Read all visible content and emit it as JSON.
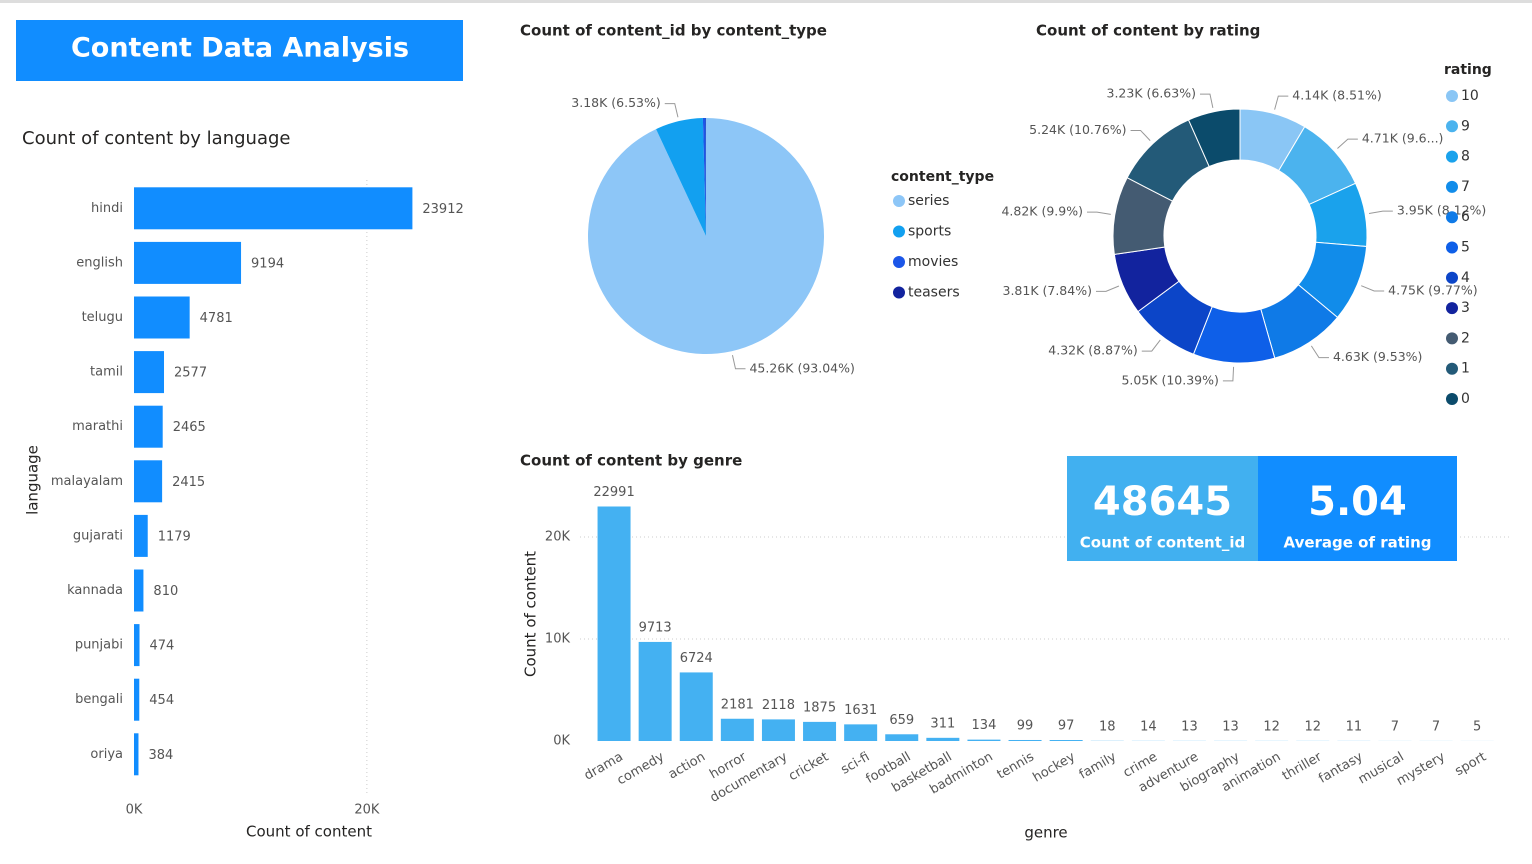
{
  "title": "Content Data Analysis",
  "cards": [
    {
      "value": "48645",
      "label": "Count of content_id"
    },
    {
      "value": "5.04",
      "label": "Average of rating"
    }
  ],
  "chart_data": [
    {
      "type": "hbar",
      "title": "Count of content by language",
      "x_label": "Count of content",
      "y_label": "language",
      "categories": [
        "hindi",
        "english",
        "telugu",
        "tamil",
        "marathi",
        "malayalam",
        "gujarati",
        "kannada",
        "punjabi",
        "bengali",
        "oriya"
      ],
      "values": [
        23912,
        9194,
        4781,
        2577,
        2465,
        2415,
        1179,
        810,
        474,
        454,
        384
      ],
      "color": "#118DFF",
      "xlim": [
        0,
        28000
      ],
      "xticks": [
        {
          "value": 0,
          "label": "0K"
        },
        {
          "value": 20000,
          "label": "20K"
        }
      ],
      "grid": true
    },
    {
      "type": "pie",
      "title": "Count of content_id by content_type",
      "legend_title": "content_type",
      "categories": [
        "series",
        "sports",
        "movies",
        "teasers"
      ],
      "values": [
        45260,
        3180,
        180,
        25
      ],
      "value_labels": [
        "45.26K (93.04%)",
        "3.18K (6.53%)",
        null,
        null
      ],
      "colors": [
        "#8DC6F7",
        "#12A0F0",
        "#1B56E8",
        "#12239E"
      ]
    },
    {
      "type": "donut",
      "title": "Count of content by rating",
      "legend_title": "rating",
      "categories": [
        "10",
        "9",
        "8",
        "7",
        "6",
        "5",
        "4",
        "3",
        "2",
        "1",
        "0"
      ],
      "values": [
        4140,
        4710,
        3950,
        4750,
        4630,
        5050,
        4320,
        3810,
        4820,
        5240,
        3230
      ],
      "value_labels": [
        "4.14K (8.51%)",
        "4.71K (9.6...)",
        "3.95K (8.12%)",
        "4.75K (9.77%)",
        "4.63K (9.53%)",
        "5.05K (10.39%)",
        "4.32K (8.87%)",
        "3.81K (7.84%)",
        "4.82K (9.9%)",
        "5.24K (10.76%)",
        "3.23K (6.63%)"
      ],
      "colors": [
        "#8AC6F5",
        "#4BB3EE",
        "#1AA2EC",
        "#118CEA",
        "#0F7AE7",
        "#0E5FE8",
        "#0C45C8",
        "#12239E",
        "#445B72",
        "#235A78",
        "#0B4B6B"
      ]
    },
    {
      "type": "bar",
      "title": "Count of content by genre",
      "x_label": "genre",
      "y_label": "Count of content",
      "categories": [
        "drama",
        "comedy",
        "action",
        "horror",
        "documentary",
        "cricket",
        "sci-fi",
        "football",
        "basketball",
        "badminton",
        "tennis",
        "hockey",
        "family",
        "crime",
        "adventure",
        "biography",
        "animation",
        "thriller",
        "fantasy",
        "musical",
        "mystery",
        "sport"
      ],
      "values": [
        22991,
        9713,
        6724,
        2181,
        2118,
        1875,
        1631,
        659,
        311,
        134,
        99,
        97,
        18,
        14,
        13,
        13,
        12,
        12,
        11,
        7,
        7,
        5
      ],
      "color": "#44B1F2",
      "ylim": [
        0,
        25000
      ],
      "yticks": [
        {
          "value": 0,
          "label": "0K"
        },
        {
          "value": 10000,
          "label": "10K"
        },
        {
          "value": 20000,
          "label": "20K"
        }
      ],
      "grid": true
    }
  ]
}
